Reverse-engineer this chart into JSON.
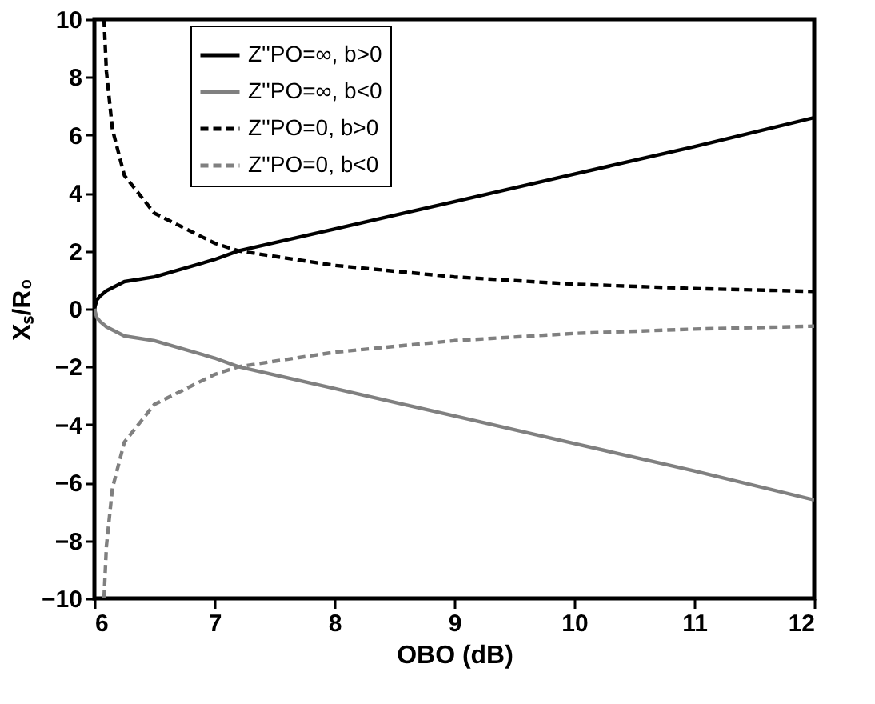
{
  "chart_data": {
    "type": "line",
    "xlabel": "OBO (dB)",
    "ylabel": "Xₛ/R₀",
    "xlim": [
      6,
      12
    ],
    "xticks": [
      6,
      7,
      8,
      9,
      10,
      11,
      12
    ],
    "ylim": [
      -10,
      10
    ],
    "yticks": [
      -10,
      -8,
      -6,
      -4,
      -2,
      0,
      2,
      4,
      6,
      8,
      10
    ],
    "grid": false,
    "legend": "top left",
    "marker": "none",
    "series": [
      {
        "name": "Z''PO=∞, b>0",
        "color": "#000000",
        "line_style": "solid",
        "x": [
          6,
          6.02,
          6.05,
          6.1,
          6.25,
          6.5,
          7,
          7.2,
          8,
          9,
          10,
          11,
          12
        ],
        "values": [
          0,
          0.3,
          0.45,
          0.62,
          0.94,
          1.1,
          1.7,
          2.0,
          2.75,
          3.7,
          4.65,
          5.6,
          6.6
        ]
      },
      {
        "name": "Z''PO=∞, b<0",
        "color": "#808080",
        "line_style": "solid",
        "x": [
          6,
          6.02,
          6.05,
          6.1,
          6.25,
          6.5,
          7,
          7.2,
          8,
          9,
          10,
          11,
          12
        ],
        "values": [
          0,
          -0.3,
          -0.45,
          -0.62,
          -0.94,
          -1.1,
          -1.7,
          -2.0,
          -2.75,
          -3.7,
          -4.65,
          -5.6,
          -6.6
        ]
      },
      {
        "name": "Z''PO=0, b>0",
        "color": "#000000",
        "line_style": "dashed",
        "x": [
          6.08,
          6.1,
          6.15,
          6.25,
          6.5,
          7,
          7.2,
          8,
          9,
          10,
          11,
          12
        ],
        "values": [
          10,
          8.2,
          6.2,
          4.6,
          3.3,
          2.27,
          2.0,
          1.5,
          1.1,
          0.85,
          0.7,
          0.6
        ]
      },
      {
        "name": "Z''PO=0, b<0",
        "color": "#808080",
        "line_style": "dashed",
        "x": [
          6.08,
          6.1,
          6.15,
          6.25,
          6.5,
          7,
          7.2,
          8,
          9,
          10,
          11,
          12
        ],
        "values": [
          -10,
          -8.2,
          -6.2,
          -4.6,
          -3.3,
          -2.27,
          -2.0,
          -1.5,
          -1.1,
          -0.85,
          -0.7,
          -0.6
        ]
      }
    ]
  }
}
